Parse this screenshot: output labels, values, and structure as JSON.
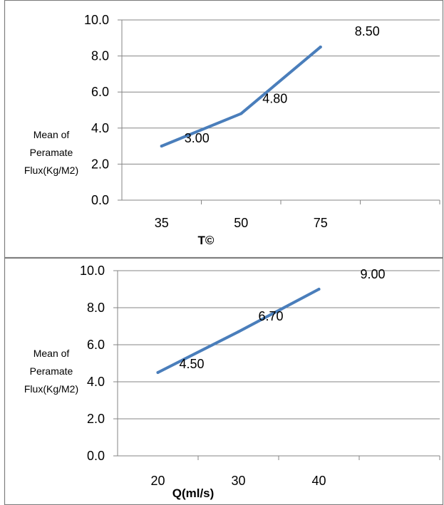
{
  "chart_data": [
    {
      "type": "line",
      "title": "",
      "xlabel": "T©",
      "ylabel": "Mean of Peramate Flux(Kg/M2)",
      "ylabel_lines": [
        "Mean of",
        "Peramate",
        "Flux(Kg/M2)"
      ],
      "categories": [
        "35",
        "50",
        "75"
      ],
      "series": [
        {
          "values": [
            3.0,
            4.8,
            8.5
          ],
          "labels": [
            "3.00",
            "4.80",
            "8.50"
          ],
          "color": "#4a7ebb"
        }
      ],
      "ylim": [
        0,
        10
      ],
      "yticks": [
        "0.0",
        "2.0",
        "4.0",
        "6.0",
        "8.0",
        "10.0"
      ],
      "grid": true,
      "legend": false
    },
    {
      "type": "line",
      "title": "",
      "xlabel": "Q(ml/s)",
      "ylabel": "Mean of Peramate Flux(Kg/M2)",
      "ylabel_lines": [
        "Mean of",
        "Peramate",
        "Flux(Kg/M2)"
      ],
      "categories": [
        "20",
        "30",
        "40"
      ],
      "series": [
        {
          "values": [
            4.5,
            6.7,
            9.0
          ],
          "labels": [
            "4.50",
            "6.70",
            "9.00"
          ],
          "color": "#4a7ebb"
        }
      ],
      "ylim": [
        0,
        10
      ],
      "yticks": [
        "0.0",
        "2.0",
        "4.0",
        "6.0",
        "8.0",
        "10.0"
      ],
      "grid": true,
      "legend": false
    }
  ],
  "colors": {
    "line": "#4a7ebb",
    "grid": "#868686",
    "axis": "#868686",
    "frame": "#7f7f7f"
  }
}
